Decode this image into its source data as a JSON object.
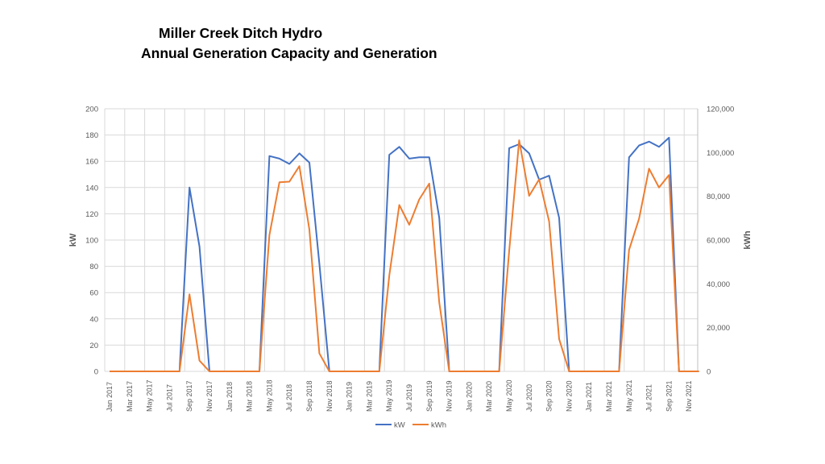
{
  "chart_data": {
    "type": "line",
    "title": [
      "Miller Creek Ditch Hydro",
      "Annual Generation  Capacity and Generation"
    ],
    "ylabel": "kW",
    "y2label": "kWh",
    "ylim": [
      0,
      200
    ],
    "y2lim": [
      0,
      120000
    ],
    "yticks": [
      "0",
      "20",
      "40",
      "60",
      "80",
      "100",
      "120",
      "140",
      "160",
      "180",
      "200"
    ],
    "y2ticks": [
      "0",
      "20,000",
      "40,000",
      "60,000",
      "80,000",
      "100,000",
      "120,000"
    ],
    "grid": true,
    "legend": "bottom",
    "x": [
      "Jan 2017",
      "Feb 2017",
      "Mar 2017",
      "Apr 2017",
      "May 2017",
      "Jun 2017",
      "Jul 2017",
      "Aug 2017",
      "Sep 2017",
      "Oct 2017",
      "Nov 2017",
      "Dec 2017",
      "Jan 2018",
      "Feb 2018",
      "Mar 2018",
      "Apr 2018",
      "May 2018",
      "Jun 2018",
      "Jul 2018",
      "Aug 2018",
      "Sep 2018",
      "Oct 2018",
      "Nov 2018",
      "Dec 2018",
      "Jan 2019",
      "Feb 2019",
      "Mar 2019",
      "Apr 2019",
      "May 2019",
      "Jun 2019",
      "Jul 2019",
      "Aug 2019",
      "Sep 2019",
      "Oct 2019",
      "Nov 2019",
      "Dec 2019",
      "Jan 2020",
      "Feb 2020",
      "Mar 2020",
      "Apr 2020",
      "May 2020",
      "Jun 2020",
      "Jul 2020",
      "Aug 2020",
      "Sep 2020",
      "Oct 2020",
      "Nov 2020",
      "Dec 2020",
      "Jan 2021",
      "Feb 2021",
      "Mar 2021",
      "Apr 2021",
      "May 2021",
      "Jun 2021",
      "Jul 2021",
      "Aug 2021",
      "Sep 2021",
      "Oct 2021",
      "Nov 2021",
      "Dec 2021"
    ],
    "series": [
      {
        "name": "kW",
        "axis": "left",
        "color": "#4472C4",
        "values": [
          0,
          0,
          0,
          0,
          0,
          0,
          0,
          0,
          140,
          95,
          0,
          0,
          0,
          0,
          0,
          0,
          164,
          162,
          158,
          166,
          159,
          82,
          0,
          0,
          0,
          0,
          0,
          0,
          165,
          171,
          162,
          163,
          163,
          117,
          0,
          0,
          0,
          0,
          0,
          0,
          170,
          173,
          166,
          146,
          149,
          117,
          0,
          0,
          0,
          0,
          0,
          0,
          163,
          172,
          175,
          171,
          178,
          0,
          0,
          0
        ]
      },
      {
        "name": "kWh",
        "axis": "right",
        "color": "#ED7D31",
        "values": [
          0,
          0,
          0,
          0,
          0,
          0,
          0,
          0,
          35200,
          4900,
          0,
          0,
          0,
          0,
          0,
          0,
          62300,
          86400,
          86700,
          93800,
          64800,
          8200,
          0,
          0,
          0,
          0,
          0,
          0,
          43800,
          76000,
          67000,
          78600,
          85800,
          31500,
          0,
          0,
          0,
          0,
          0,
          0,
          55000,
          105600,
          80200,
          87700,
          68500,
          14800,
          0,
          0,
          0,
          0,
          0,
          0,
          55500,
          69700,
          92600,
          84000,
          89700,
          0,
          0,
          0
        ]
      }
    ]
  }
}
